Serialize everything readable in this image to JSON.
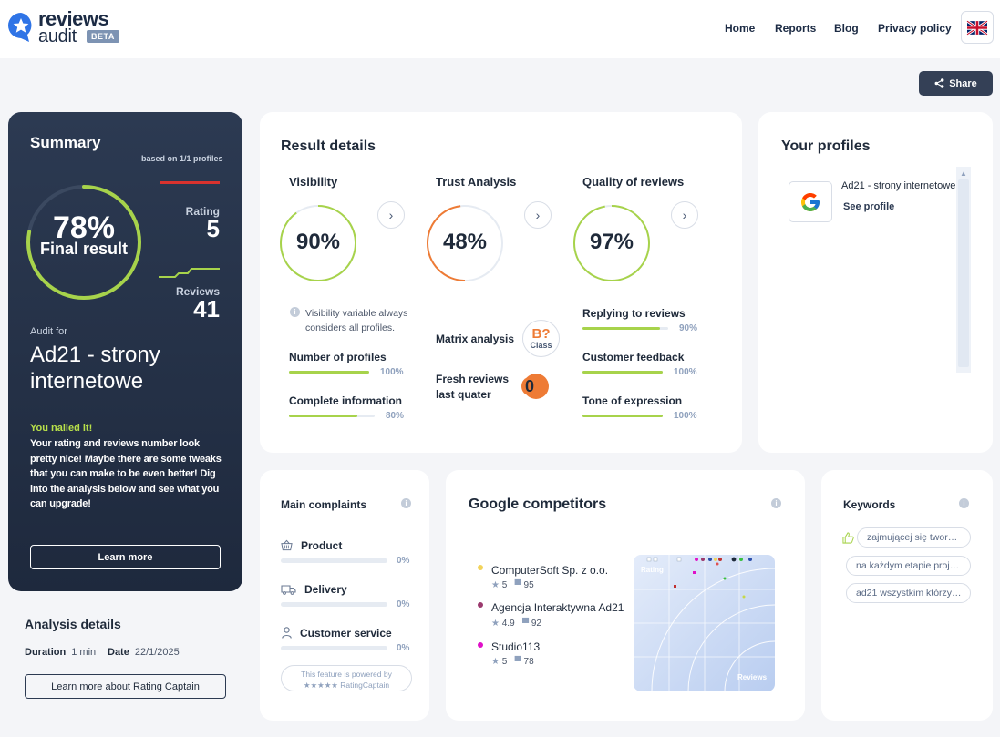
{
  "header": {
    "logo_top": "reviews",
    "logo_bottom": "audit",
    "badge": "BETA",
    "nav": [
      "Home",
      "Reports",
      "Blog",
      "Privacy policy"
    ],
    "language_flag": "uk-flag-icon"
  },
  "share_label": "Share",
  "summary": {
    "title": "Summary",
    "based_on": "based on 1/1 profiles",
    "final_percent": "78%",
    "final_percent_value": 78,
    "final_label": "Final result",
    "rating_label": "Rating",
    "rating_value": "5",
    "reviews_label": "Reviews",
    "reviews_value": "41",
    "audit_for_label": "Audit for",
    "audit_name": "Ad21 - strony internetowe",
    "headline": "You nailed it!",
    "message": "Your rating and reviews number look pretty nice! Maybe there are some tweaks that you can make to be even better! Dig into the analysis below and see what you can upgrade!",
    "learn_more": "Learn more"
  },
  "analysis": {
    "title": "Analysis details",
    "duration_label": "Duration",
    "duration_value": "1 min",
    "date_label": "Date",
    "date_value": "22/1/2025",
    "rating_captain_button": "Learn more about Rating Captain"
  },
  "result_details": {
    "title": "Result details",
    "visibility": {
      "title": "Visibility",
      "value": "90%",
      "fraction": 0.9,
      "note": "Visibility variable always considers all profiles.",
      "metrics": [
        {
          "label": "Number of profiles",
          "value": "100%",
          "fraction": 1.0
        },
        {
          "label": "Complete information",
          "value": "80%",
          "fraction": 0.8
        }
      ]
    },
    "trust": {
      "title": "Trust Analysis",
      "value": "48%",
      "fraction": 0.48,
      "matrix_label": "Matrix analysis",
      "matrix_badge": "B?",
      "matrix_badge_sub": "Class",
      "fresh_label_line1": "Fresh reviews",
      "fresh_label_line2": "last quater",
      "fresh_value": "0"
    },
    "quality": {
      "title": "Quality of reviews",
      "value": "97%",
      "fraction": 0.97,
      "metrics": [
        {
          "label": "Replying to reviews",
          "value": "90%",
          "fraction": 0.9
        },
        {
          "label": "Customer feedback",
          "value": "100%",
          "fraction": 1.0
        },
        {
          "label": "Tone of expression",
          "value": "100%",
          "fraction": 1.0
        }
      ]
    }
  },
  "profiles": {
    "title": "Your profiles",
    "items": [
      {
        "name": "Ad21 - strony internetowe",
        "link": "See profile",
        "icon": "google-icon"
      }
    ]
  },
  "complaints": {
    "title": "Main complaints",
    "items": [
      {
        "label": "Product",
        "value": "0%",
        "icon": "basket-icon"
      },
      {
        "label": "Delivery",
        "value": "0%",
        "icon": "truck-icon"
      },
      {
        "label": "Customer service",
        "value": "0%",
        "icon": "person-icon"
      }
    ],
    "powered_line1": "This feature is powered by",
    "powered_line2": "★★★★★ RatingCaptain"
  },
  "competitors": {
    "title": "Google competitors",
    "items": [
      {
        "name": "ComputerSoft Sp. z o.o.",
        "rating": "5",
        "reviews": "95",
        "color": "#f2d35b"
      },
      {
        "name": "Agencja Interaktywna Ad21",
        "rating": "4.9",
        "reviews": "92",
        "color": "#9b3a6e"
      },
      {
        "name": "Studio113",
        "rating": "5",
        "reviews": "78",
        "color": "#e010c8"
      }
    ],
    "map_label_rating": "Rating",
    "map_label_reviews": "Reviews"
  },
  "keywords": {
    "title": "Keywords",
    "items": [
      "zajmującej się twor…",
      "na każdym etapie proj…",
      "ad21 wszystkim którzy…"
    ]
  },
  "colors": {
    "accent_green": "#a7d34b",
    "trust_orange": "#ee7b35",
    "dark_card": "#26334a"
  }
}
